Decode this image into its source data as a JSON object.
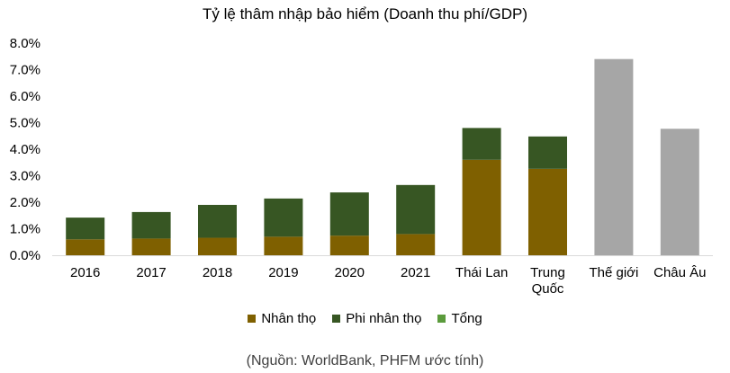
{
  "chart_data": {
    "type": "bar",
    "stacked": true,
    "title": "Tỷ lệ thâm nhập bảo hiểm (Doanh thu phí/GDP)",
    "categories": [
      "2016",
      "2017",
      "2018",
      "2019",
      "2020",
      "2021",
      "Thái Lan",
      "Trung Quốc",
      "Thế giới",
      "Châu Âu"
    ],
    "category_lines": [
      [
        "2016"
      ],
      [
        "2017"
      ],
      [
        "2018"
      ],
      [
        "2019"
      ],
      [
        "2020"
      ],
      [
        "2021"
      ],
      [
        "Thái Lan"
      ],
      [
        "Trung",
        "Quốc"
      ],
      [
        "Thế giới"
      ],
      [
        "Châu Âu"
      ]
    ],
    "series": [
      {
        "name": "Nhân thọ",
        "color": "#7F6000",
        "values": [
          0.6,
          0.63,
          0.66,
          0.7,
          0.74,
          0.8,
          3.6,
          3.26,
          null,
          null
        ]
      },
      {
        "name": "Phi nhân thọ",
        "color": "#375623",
        "values": [
          0.82,
          1.0,
          1.24,
          1.44,
          1.63,
          1.85,
          1.2,
          1.22,
          null,
          null
        ]
      },
      {
        "name": "Tổng",
        "color": "#5B9B3C",
        "values": [
          null,
          null,
          null,
          null,
          null,
          null,
          null,
          null,
          7.4,
          4.77
        ]
      }
    ],
    "total_bar_color": "#A6A6A6",
    "ylim": [
      0,
      8
    ],
    "yticks": [
      "0.0%",
      "1.0%",
      "2.0%",
      "3.0%",
      "4.0%",
      "5.0%",
      "6.0%",
      "7.0%",
      "8.0%"
    ],
    "legend_position": "bottom",
    "grid": false
  },
  "source_note": "(Nguồn: WorldBank, PHFM ước tính)"
}
